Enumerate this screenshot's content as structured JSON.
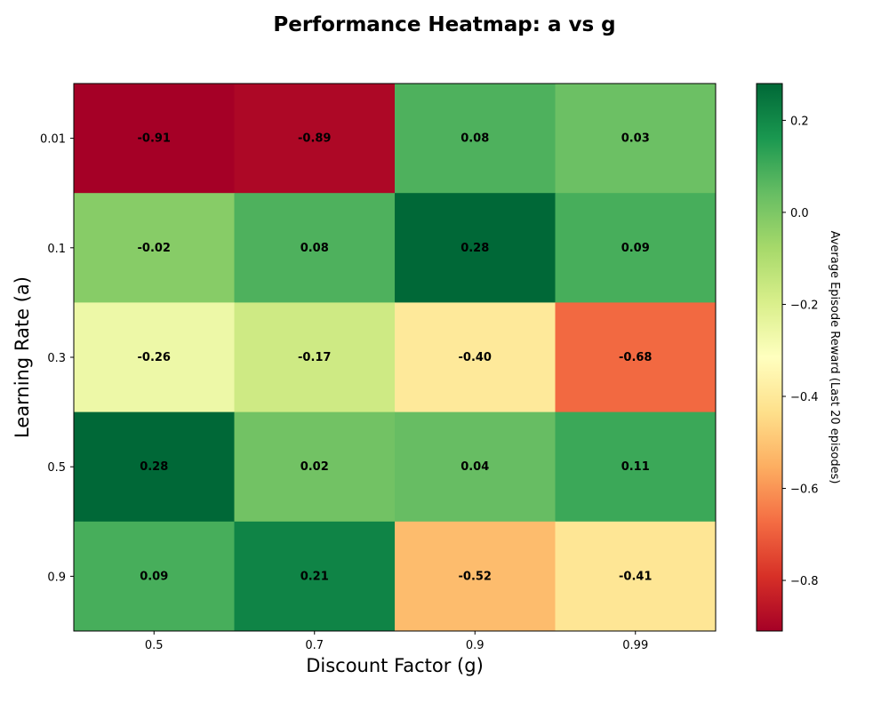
{
  "chart_data": {
    "type": "heatmap",
    "title": "Performance Heatmap: a vs g",
    "xlabel": "Discount Factor (g)",
    "ylabel": "Learning Rate (a)",
    "x_categories": [
      "0.5",
      "0.7",
      "0.9",
      "0.99"
    ],
    "y_categories": [
      "0.01",
      "0.1",
      "0.3",
      "0.5",
      "0.9"
    ],
    "values": [
      [
        -0.91,
        -0.89,
        0.08,
        0.03
      ],
      [
        -0.02,
        0.08,
        0.28,
        0.09
      ],
      [
        -0.26,
        -0.17,
        -0.4,
        -0.68
      ],
      [
        0.28,
        0.02,
        0.04,
        0.11
      ],
      [
        0.09,
        0.21,
        -0.52,
        -0.41
      ]
    ],
    "value_labels": [
      [
        "-0.91",
        "-0.89",
        "0.08",
        "0.03"
      ],
      [
        "-0.02",
        "0.08",
        "0.28",
        "0.09"
      ],
      [
        "-0.26",
        "-0.17",
        "-0.40",
        "-0.68"
      ],
      [
        "0.28",
        "0.02",
        "0.04",
        "0.11"
      ],
      [
        "0.09",
        "0.21",
        "-0.52",
        "-0.41"
      ]
    ],
    "colorbar": {
      "label": "Average Episode Reward (Last 20 episodes)",
      "colormap": "RdYlGn",
      "vmin": -0.91,
      "vmax": 0.28,
      "ticks": [
        0.2,
        0.0,
        -0.2,
        -0.4,
        -0.6,
        -0.8
      ],
      "tick_labels": [
        "0.2",
        "0.0",
        "−0.2",
        "−0.4",
        "−0.6",
        "−0.8"
      ]
    },
    "grid": false
  }
}
